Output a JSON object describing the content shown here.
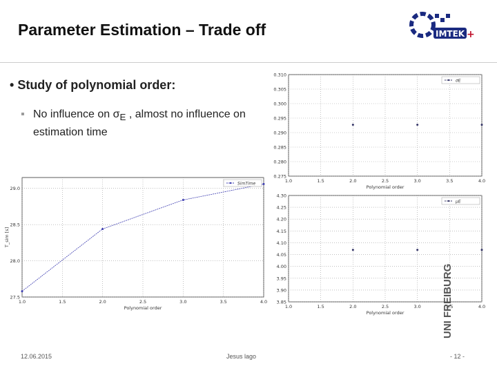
{
  "header": {
    "title": "Parameter Estimation – Trade off",
    "logo": "IMTEK"
  },
  "bullets": [
    {
      "text": "Study of polynomial order:",
      "sub": [
        "No influence on σ",
        "E",
        " , almost no influence on estimation time"
      ]
    }
  ],
  "footer": {
    "date": "12.06.2015",
    "author": "Jesus lago",
    "page": "- 12 -",
    "university": "UNI FREIBURG"
  },
  "chart_data": [
    {
      "type": "line",
      "xlabel": "Polynomial order",
      "ylabel": "T_sim [s]",
      "x": [
        1,
        2,
        3,
        4
      ],
      "series": [
        {
          "name": "SimTime",
          "color": "#3b3bb0",
          "values": [
            27.58,
            28.44,
            28.84,
            29.06
          ]
        }
      ],
      "xlim": [
        1,
        4
      ],
      "ylim": [
        27.5,
        29.15
      ],
      "xticks": [
        {
          "value": 1,
          "label": "1.0"
        },
        1.5,
        {
          "value": 2,
          "label": "2.0"
        },
        2.5,
        {
          "value": 3,
          "label": "3.0"
        },
        3.5,
        {
          "value": 4,
          "label": "4.0"
        }
      ],
      "yticks": [
        27.5,
        {
          "value": 28,
          "label": "28.0"
        },
        28.5,
        {
          "value": 29,
          "label": "29.0"
        }
      ],
      "grid": true,
      "legend": "upper right"
    },
    {
      "type": "scatter",
      "xlabel": "Polynomial order",
      "x": [
        2,
        3,
        4
      ],
      "series": [
        {
          "name": "σE",
          "color": "#333366",
          "values": [
            0.2927,
            0.2927,
            0.2927
          ]
        }
      ],
      "xlim": [
        1,
        4
      ],
      "ylim": [
        0.275,
        0.31
      ],
      "xticks": [
        {
          "value": 1,
          "label": "1.0"
        },
        1.5,
        {
          "value": 2,
          "label": "2.0"
        },
        2.5,
        {
          "value": 3,
          "label": "3.0"
        },
        3.5,
        {
          "value": 4,
          "label": "4.0"
        }
      ],
      "yticks": [
        0.275,
        {
          "value": 0.28,
          "label": "0.280"
        },
        0.285,
        {
          "value": 0.29,
          "label": "0.290"
        },
        0.295,
        {
          "value": 0.3,
          "label": "0.300"
        },
        0.305,
        {
          "value": 0.31,
          "label": "0.310"
        }
      ],
      "grid": true,
      "legend": "upper right"
    },
    {
      "type": "scatter",
      "xlabel": "Polynomial order",
      "x": [
        2,
        3,
        4
      ],
      "series": [
        {
          "name": "μE",
          "color": "#333366",
          "values": [
            4.07,
            4.07,
            4.07
          ]
        }
      ],
      "xlim": [
        1,
        4
      ],
      "ylim": [
        3.85,
        4.3
      ],
      "xticks": [
        {
          "value": 1,
          "label": "1.0"
        },
        1.5,
        {
          "value": 2,
          "label": "2.0"
        },
        2.5,
        {
          "value": 3,
          "label": "3.0"
        },
        3.5,
        {
          "value": 4,
          "label": "4.0"
        }
      ],
      "yticks": [
        3.85,
        {
          "value": 3.9,
          "label": "3.90"
        },
        3.95,
        {
          "value": 4,
          "label": "4.00"
        },
        4.05,
        {
          "value": 4.1,
          "label": "4.10"
        },
        4.15,
        {
          "value": 4.2,
          "label": "4.20"
        },
        4.25,
        {
          "value": 4.3,
          "label": "4.30"
        }
      ],
      "grid": true,
      "legend": "upper right"
    }
  ]
}
